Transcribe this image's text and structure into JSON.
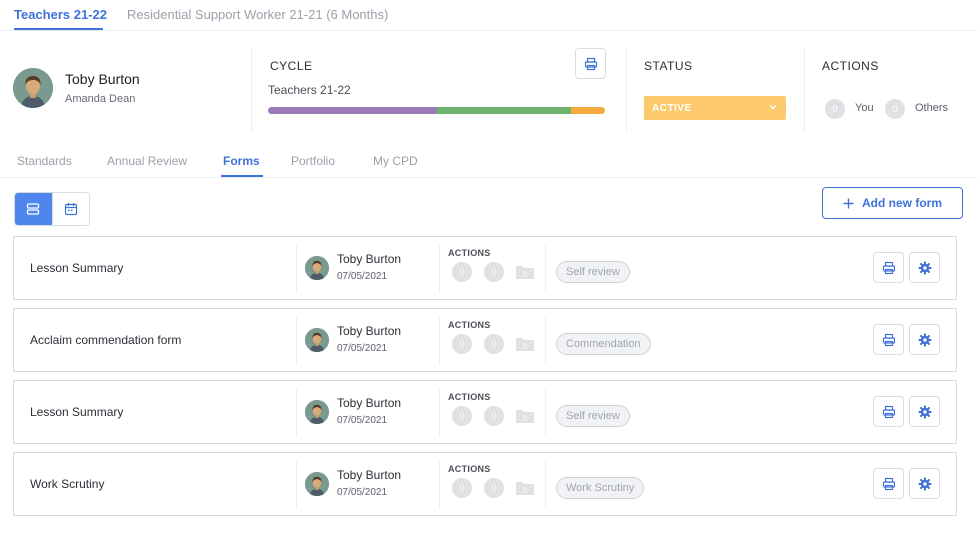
{
  "top_tabs": [
    {
      "label": "Teachers 21-22",
      "active": true
    },
    {
      "label": "Residential Support Worker 21-21 (6 Months)",
      "active": false
    }
  ],
  "profile": {
    "name": "Toby Burton",
    "subtitle": "Amanda Dean"
  },
  "cycle": {
    "heading": "CYCLE",
    "name": "Teachers 21-22",
    "progress_segments": [
      {
        "color": "#9b7ab8",
        "fraction": 0.5
      },
      {
        "color": "#6db36d",
        "fraction": 0.4
      },
      {
        "color": "#f4a93d",
        "fraction": 0.1
      }
    ]
  },
  "status": {
    "heading": "STATUS",
    "value": "ACTIVE",
    "color": "#fcca6c"
  },
  "actions": {
    "heading": "ACTIONS",
    "you_count": "0",
    "you_label": "You",
    "others_count": "0",
    "others_label": "Others"
  },
  "sub_tabs": [
    {
      "label": "Standards",
      "active": false
    },
    {
      "label": "Annual Review",
      "active": false
    },
    {
      "label": "Forms",
      "active": true
    },
    {
      "label": "Portfolio",
      "active": false
    },
    {
      "label": "My CPD",
      "active": false
    }
  ],
  "add_button_label": "Add new form",
  "forms": [
    {
      "title": "Lesson Summary",
      "owner": "Toby Burton",
      "date": "07/05/2021",
      "actions_label": "ACTIONS",
      "count_a": "0",
      "count_b": "0",
      "type": "Self review"
    },
    {
      "title": "Acclaim commendation form",
      "owner": "Toby Burton",
      "date": "07/05/2021",
      "actions_label": "ACTIONS",
      "count_a": "0",
      "count_b": "0",
      "type": "Commendation"
    },
    {
      "title": "Lesson Summary",
      "owner": "Toby Burton",
      "date": "07/05/2021",
      "actions_label": "ACTIONS",
      "count_a": "0",
      "count_b": "0",
      "type": "Self review"
    },
    {
      "title": "Work Scrutiny",
      "owner": "Toby Burton",
      "date": "07/05/2021",
      "actions_label": "ACTIONS",
      "count_a": "0",
      "count_b": "0",
      "type": "Work Scrutiny"
    }
  ],
  "colors": {
    "accent": "#3f73d8",
    "accent_fill": "#4f86ee",
    "muted": "#dfe1e5"
  }
}
